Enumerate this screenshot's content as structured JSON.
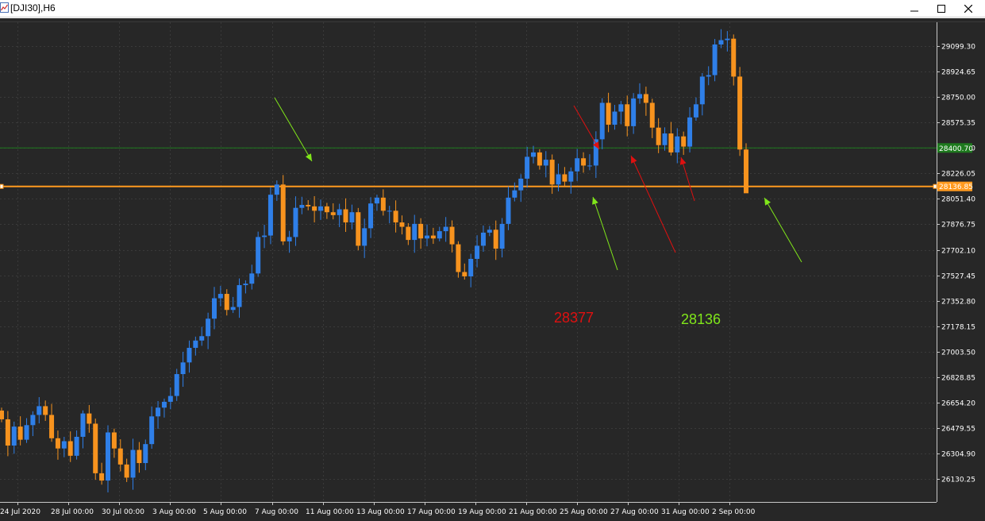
{
  "window": {
    "title": "[DJI30],H6",
    "icon": "chart-app-icon",
    "controls": [
      "minimize-icon",
      "maximize-icon",
      "close-icon"
    ]
  },
  "colors": {
    "background": "#272727",
    "grid": "#3a3a3a",
    "bull": "#2f7fe8",
    "bear": "#f7931e",
    "support_line": "#ff9a1f",
    "resistance_line": "#1e7a1e",
    "text": "#ffffff",
    "red_label": "#e01010",
    "green_label": "#80e61a"
  },
  "chart_data": {
    "type": "candlestick",
    "symbol": "DJI30",
    "timeframe": "H6",
    "ylim": [
      25960,
      29260
    ],
    "y_ticks": [
      "29099.30",
      "28924.65",
      "28750.00",
      "28575.35",
      "28400.70",
      "28226.05",
      "28051.40",
      "27876.75",
      "27702.10",
      "27527.45",
      "27352.80",
      "27178.15",
      "27003.50",
      "26828.85",
      "26654.20",
      "26479.55",
      "26304.90",
      "26130.25"
    ],
    "x_ticks": [
      "24 Jul 2020",
      "28 Jul 00:00",
      "30 Jul 00:00",
      "3 Aug 00:00",
      "5 Aug 00:00",
      "7 Aug 00:00",
      "11 Aug 00:00",
      "13 Aug 00:00",
      "17 Aug 00:00",
      "19 Aug 00:00",
      "21 Aug 00:00",
      "25 Aug 00:00",
      "27 Aug 00:00",
      "31 Aug 00:00",
      "2 Sep 00:00"
    ],
    "support_price_label": "28136.85",
    "support_price": 28136.85,
    "resistance_price_label": "28400.70",
    "resistance_price": 28400.7,
    "closes": [
      26540,
      26360,
      26490,
      26400,
      26500,
      26570,
      26630,
      26570,
      26410,
      26340,
      26390,
      26290,
      26420,
      26580,
      26510,
      26170,
      26120,
      26450,
      26340,
      26230,
      26140,
      26330,
      26240,
      26370,
      26560,
      26620,
      26660,
      26700,
      26850,
      26930,
      27030,
      27080,
      27110,
      27230,
      27370,
      27400,
      27290,
      27310,
      27460,
      27470,
      27540,
      27790,
      27800,
      28080,
      28150,
      27760,
      27790,
      27990,
      28010,
      28000,
      27970,
      28000,
      27960,
      27940,
      27980,
      27890,
      27960,
      27730,
      27850,
      28020,
      28060,
      27970,
      27970,
      27890,
      27860,
      27770,
      27880,
      27780,
      27800,
      27780,
      27830,
      27860,
      27740,
      27550,
      27520,
      27640,
      27730,
      27820,
      27840,
      27710,
      27880,
      28060,
      28110,
      28190,
      28340,
      28370,
      28280,
      28320,
      28150,
      28220,
      28170,
      28240,
      28330,
      28280,
      28280,
      28460,
      28710,
      28560,
      28650,
      28700,
      28550,
      28740,
      28770,
      28710,
      28540,
      28420,
      28500,
      28370,
      28480,
      28410,
      28610,
      28700,
      28890,
      28900,
      29110,
      29140,
      29150,
      28890,
      28390,
      28090
    ],
    "annotation_labels": [
      "28377",
      "28136"
    ]
  }
}
